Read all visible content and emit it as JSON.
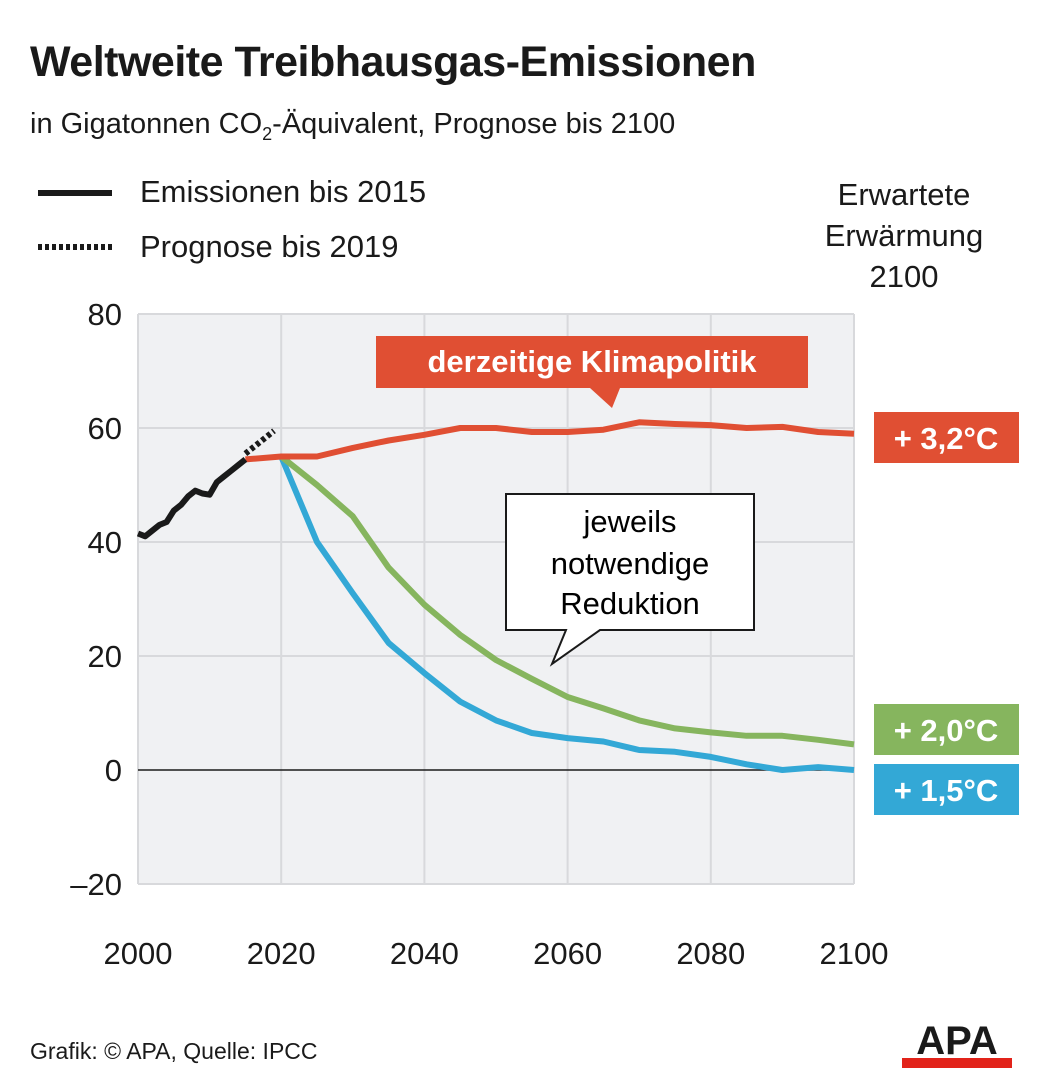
{
  "chart_data": {
    "type": "line",
    "title": "Weltweite Treibhausgas-Emissionen",
    "subtitle_parts": [
      "in Gigatonnen CO",
      "2",
      "-Äquivalent, Prognose bis 2100"
    ],
    "xlabel": "",
    "ylabel": "",
    "xlim": [
      2000,
      2100
    ],
    "ylim": [
      -20,
      80
    ],
    "xticks": [
      2000,
      2020,
      2040,
      2060,
      2080,
      2100
    ],
    "yticks": [
      -20,
      0,
      20,
      40,
      60,
      80
    ],
    "ytick_labels": [
      "–20",
      "0",
      "20",
      "40",
      "60",
      "80"
    ],
    "grid": true,
    "legend": [
      {
        "name": "Emissionen bis 2015",
        "style": "solid"
      },
      {
        "name": "Prognose bis 2019",
        "style": "dotted"
      }
    ],
    "right_header": [
      "Erwartete",
      "Erwärmung",
      "2100"
    ],
    "series": [
      {
        "name": "Emissionen bis 2015",
        "color": "#1a1a1a",
        "style": "solid",
        "x": [
          2000,
          2001,
          2002,
          2003,
          2004,
          2005,
          2006,
          2007,
          2008,
          2009,
          2010,
          2011,
          2012,
          2013,
          2014,
          2015
        ],
        "y": [
          41.5,
          41,
          42,
          43,
          43.5,
          45.5,
          46.5,
          48,
          49,
          48.5,
          48.3,
          50.5,
          51.5,
          52.5,
          53.5,
          54.5
        ]
      },
      {
        "name": "Prognose bis 2019",
        "color": "#1a1a1a",
        "style": "dotted",
        "x": [
          2015,
          2016,
          2017,
          2018,
          2019
        ],
        "y": [
          55.5,
          56.5,
          57.5,
          58.5,
          59.5
        ]
      },
      {
        "name": "derzeitige Klimapolitik",
        "color": "#e04f33",
        "label": "+ 3,2°C",
        "x": [
          2015,
          2020,
          2025,
          2030,
          2035,
          2040,
          2045,
          2050,
          2055,
          2060,
          2065,
          2070,
          2075,
          2080,
          2085,
          2090,
          2095,
          2100
        ],
        "y": [
          54.5,
          55,
          55,
          56.5,
          57.8,
          58.8,
          60,
          60,
          59.3,
          59.3,
          59.7,
          61,
          60.7,
          60.5,
          60,
          60.2,
          59.3,
          59
        ]
      },
      {
        "name": "Reduktion 2,0°C",
        "color": "#86b55e",
        "label": "+ 2,0°C",
        "x": [
          2020,
          2025,
          2030,
          2035,
          2040,
          2045,
          2050,
          2055,
          2060,
          2065,
          2070,
          2075,
          2080,
          2085,
          2090,
          2095,
          2100
        ],
        "y": [
          55,
          50,
          44.5,
          35.5,
          29,
          23.7,
          19.3,
          16,
          12.8,
          10.8,
          8.7,
          7.3,
          6.6,
          6,
          6,
          5.3,
          4.5
        ]
      },
      {
        "name": "Reduktion 1,5°C",
        "color": "#33a8d6",
        "label": "+ 1,5°C",
        "x": [
          2020,
          2025,
          2030,
          2035,
          2040,
          2045,
          2050,
          2055,
          2060,
          2065,
          2070,
          2075,
          2080,
          2085,
          2090,
          2095,
          2100
        ],
        "y": [
          55,
          40,
          31,
          22.3,
          17,
          12,
          8.7,
          6.5,
          5.6,
          5,
          3.5,
          3.2,
          2.3,
          1,
          0,
          0.5,
          0
        ]
      }
    ],
    "annotations": [
      {
        "text": "derzeitige Klimapolitik",
        "type": "label-box",
        "color": "#e04f33"
      },
      {
        "text_lines": [
          "jeweils",
          "notwendige",
          "Reduktion"
        ],
        "type": "speech-bubble"
      }
    ]
  },
  "legend_labels": {
    "solid": "Emissionen bis 2015",
    "dotted": "Prognose bis 2019"
  },
  "right_header": {
    "line1": "Erwartete",
    "line2": "Erwärmung",
    "line3": "2100"
  },
  "footer": {
    "credit": "Grafik: © APA, Quelle: IPCC",
    "logo": "APA"
  },
  "colors": {
    "red": "#e04f33",
    "green": "#86b55e",
    "blue": "#33a8d6",
    "plot_bg": "#f0f1f3",
    "grid": "#d8d9dc",
    "logo_red": "#e2231a"
  }
}
